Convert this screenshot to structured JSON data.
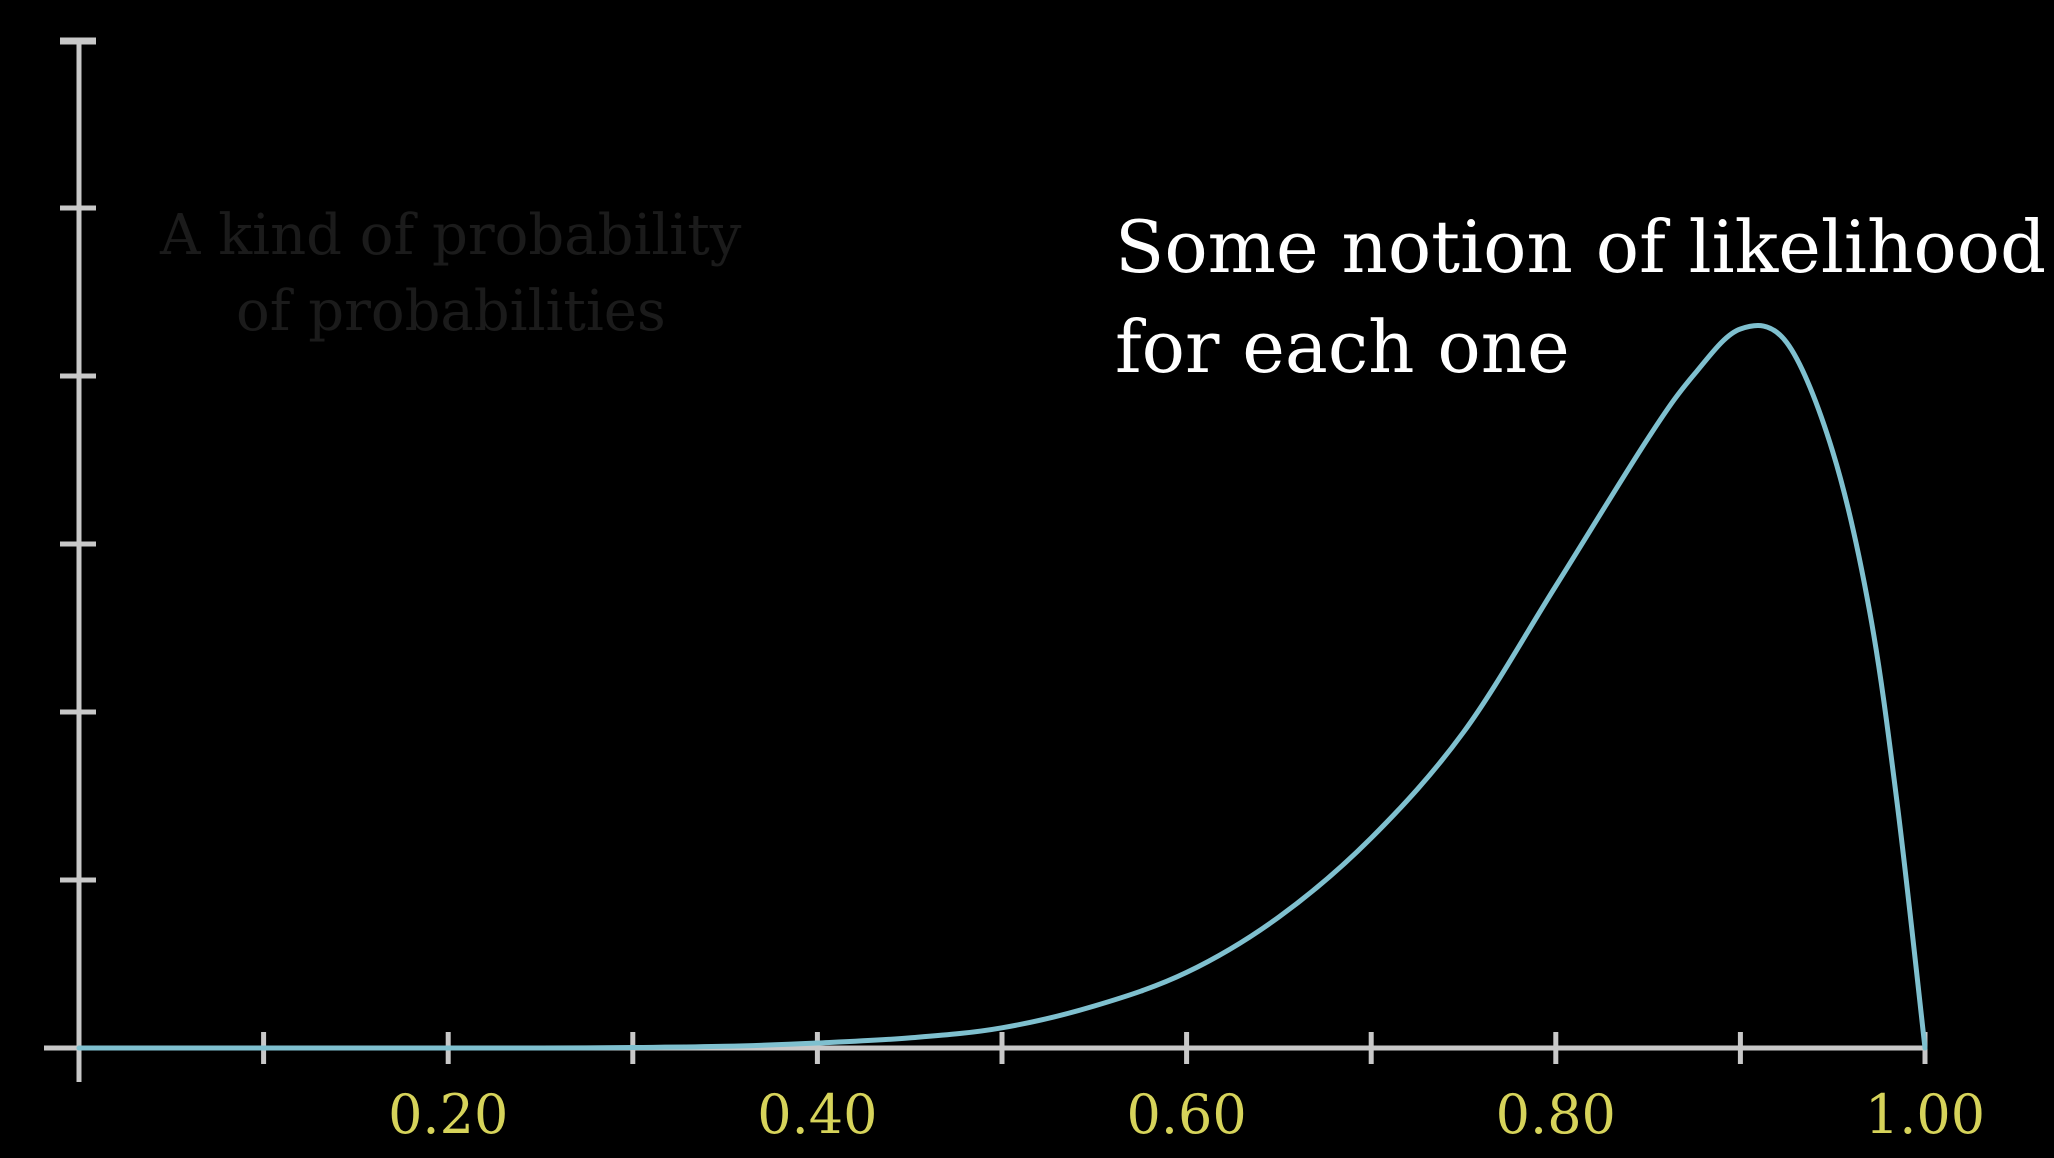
{
  "colors": {
    "background": "#000000",
    "axis": "#c8c8c8",
    "curve": "#7fc0cf",
    "tick_label": "#d6d35a",
    "annotation": "#ffffff",
    "faded_text": "#1b1b1b"
  },
  "annotation": {
    "line1": "Some notion of likelihood",
    "line2": "for each one"
  },
  "faded_caption": {
    "line1": "A kind of probability",
    "line2": "of probabilities"
  },
  "chart_data": {
    "type": "line",
    "title": "",
    "xlabel": "",
    "ylabel": "",
    "xlim": [
      0,
      1
    ],
    "ylim": [
      0,
      6
    ],
    "grid": false,
    "x_ticks": [
      0.1,
      0.2,
      0.3,
      0.4,
      0.5,
      0.6,
      0.7,
      0.8,
      0.9,
      1.0
    ],
    "x_tick_labels": [
      {
        "x": 0.2,
        "label": "0.20"
      },
      {
        "x": 0.4,
        "label": "0.40"
      },
      {
        "x": 0.6,
        "label": "0.60"
      },
      {
        "x": 0.8,
        "label": "0.80"
      },
      {
        "x": 1.0,
        "label": "1.00"
      }
    ],
    "y_ticks": [
      1,
      2,
      3,
      4,
      5,
      6
    ],
    "series": [
      {
        "x": [
          0.0,
          0.05,
          0.1,
          0.15,
          0.2,
          0.25,
          0.3,
          0.35,
          0.4,
          0.45,
          0.5,
          0.55,
          0.6,
          0.65,
          0.7,
          0.75,
          0.8,
          0.85,
          0.875,
          0.9,
          0.925,
          0.95,
          0.97,
          0.985,
          1.0
        ],
        "y": [
          0.0,
          0.0,
          0.0,
          0.0,
          0.0,
          0.0,
          0.003,
          0.01,
          0.03,
          0.06,
          0.12,
          0.25,
          0.45,
          0.78,
          1.25,
          1.88,
          2.75,
          3.63,
          4.01,
          4.28,
          4.2,
          3.55,
          2.6,
          1.45,
          0.0
        ]
      }
    ]
  }
}
